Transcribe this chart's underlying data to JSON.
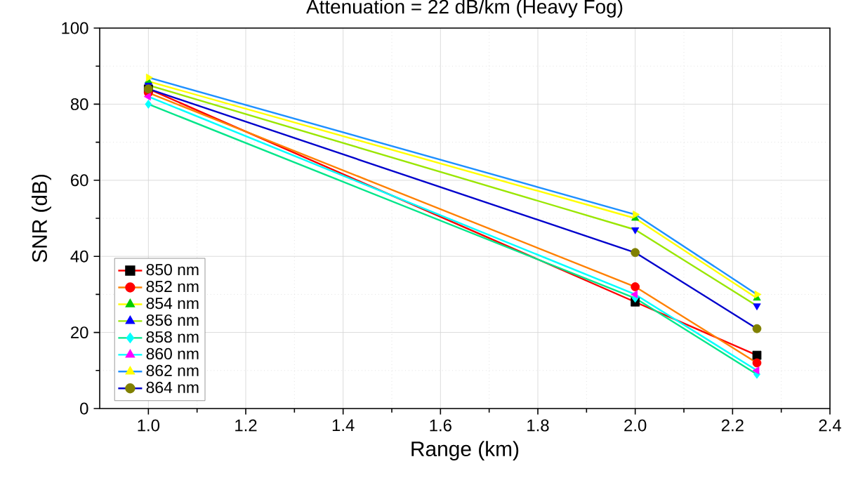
{
  "chart_data": {
    "type": "line",
    "title": "Attenuation = 22 dB/km (Heavy Fog)",
    "xlabel": "Range (km)",
    "ylabel": "SNR (dB)",
    "x": [
      1.0,
      2.0,
      2.25
    ],
    "xlim": [
      0.9,
      2.4
    ],
    "ylim": [
      0,
      100
    ],
    "xticks": [
      {
        "value": 1.0,
        "label": "1.0"
      },
      {
        "value": 1.2,
        "label": "1.2"
      },
      {
        "value": 1.4,
        "label": "1.4"
      },
      {
        "value": 1.6,
        "label": "1.6"
      },
      {
        "value": 1.8,
        "label": "1.8"
      },
      {
        "value": 2.0,
        "label": "2.0"
      },
      {
        "value": 2.2,
        "label": "2.2"
      },
      {
        "value": 2.4,
        "label": "2.4"
      }
    ],
    "yticks": [
      0,
      20,
      40,
      60,
      80,
      100
    ],
    "grid": true,
    "legend": "bottom left",
    "series": [
      {
        "name": "850 nm",
        "color": "#ff0000",
        "colors": [
          "#000000",
          "#000000",
          "#000000"
        ],
        "marker": "square",
        "values": [
          84,
          28,
          14
        ]
      },
      {
        "name": "852 nm",
        "color": "#ff8000",
        "colors": [
          "#ff0000",
          "#ff0000",
          "#ff0000"
        ],
        "marker": "circle",
        "values": [
          83,
          32,
          12
        ]
      },
      {
        "name": "854 nm",
        "color": "#ffff00",
        "colors": [
          "#00cc00",
          "#00cc00",
          "#00cc00"
        ],
        "marker": "triangle",
        "values": [
          86,
          50,
          29
        ]
      },
      {
        "name": "856 nm",
        "color": "#99e600",
        "colors": [
          "#0000ff",
          "#0000ff",
          "#0000ff"
        ],
        "marker": "triangle-down",
        "values": [
          85,
          47,
          27
        ]
      },
      {
        "name": "858 nm",
        "color": "#00e68a",
        "colors": [
          "#00ffff",
          "#00ffff",
          "#00ffff"
        ],
        "marker": "diamond",
        "values": [
          80,
          29,
          9
        ]
      },
      {
        "name": "860 nm",
        "color": "#00ffff",
        "colors": [
          "#ff00ff",
          "#ff00ff",
          "#ff00ff"
        ],
        "marker": "triangle-left",
        "values": [
          82,
          30,
          10
        ]
      },
      {
        "name": "862 nm",
        "color": "#1e90ff",
        "colors": [
          "#ffff00",
          "#ffff00",
          "#ffff00"
        ],
        "marker": "triangle-right",
        "values": [
          87,
          51,
          30
        ]
      },
      {
        "name": "864 nm",
        "color": "#0000cc",
        "colors": [
          "#808000",
          "#808000",
          "#808000"
        ],
        "marker": "circle",
        "values": [
          84,
          41,
          21
        ]
      }
    ]
  }
}
